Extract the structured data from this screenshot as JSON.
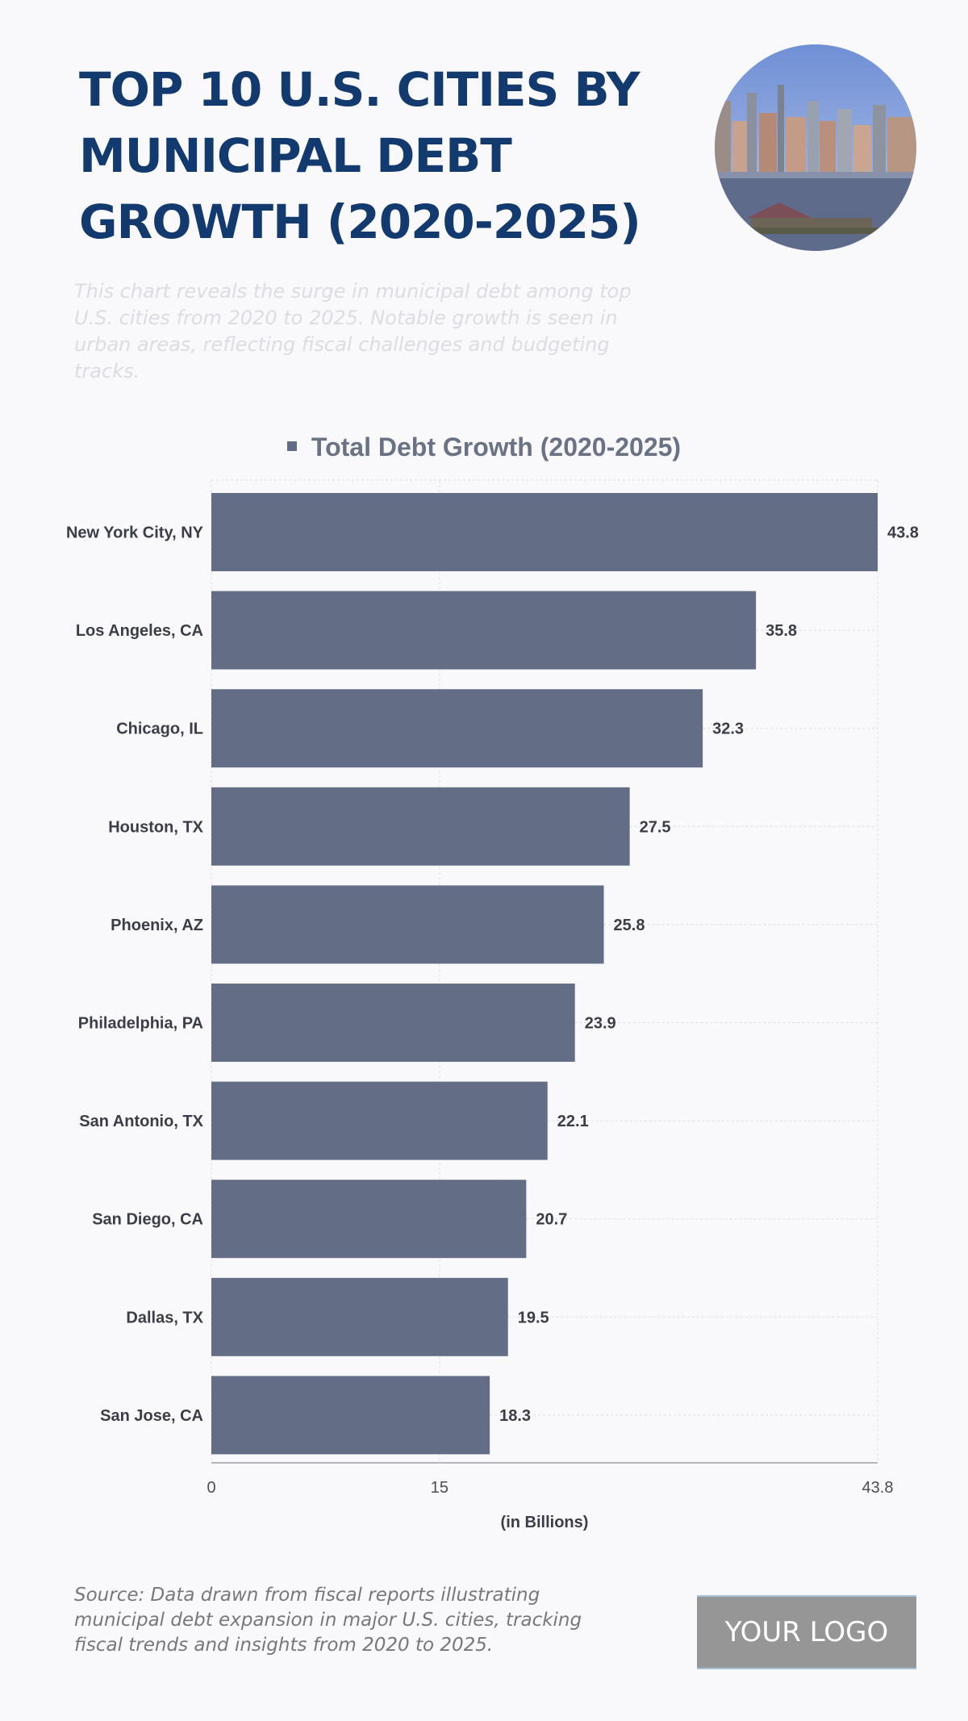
{
  "title": "TOP 10 U.S. CITIES BY MUNICIPAL DEBT GROWTH (2020-2025)",
  "subtitle": "This chart reveals the surge in municipal debt among top U.S. cities from 2020 to 2025. Notable growth is seen in urban areas, reflecting fiscal challenges and budgeting tracks.",
  "source": "Source: Data drawn from fiscal reports illustrating municipal debt expansion in major U.S. cities, tracking fiscal trends and insights from 2020 to 2025.",
  "logo": "YOUR LOGO",
  "colors": {
    "bar": "#636e86",
    "title": "#123a6e"
  },
  "chart_data": {
    "type": "bar",
    "orientation": "horizontal",
    "legend": "Total Debt Growth (2020-2025)",
    "legend_position": "top",
    "categories": [
      "New York City, NY",
      "Los Angeles, CA",
      "Chicago, IL",
      "Houston, TX",
      "Phoenix, AZ",
      "Philadelphia, PA",
      "San Antonio, TX",
      "San Diego, CA",
      "Dallas, TX",
      "San Jose, CA"
    ],
    "values": [
      43.8,
      35.8,
      32.3,
      27.5,
      25.8,
      23.9,
      22.1,
      20.7,
      19.5,
      18.3
    ],
    "xlabel": "(in Billions)",
    "xlim": [
      0,
      43.8
    ],
    "xticks": [
      "0",
      "15",
      "43.8"
    ],
    "grid": true
  }
}
